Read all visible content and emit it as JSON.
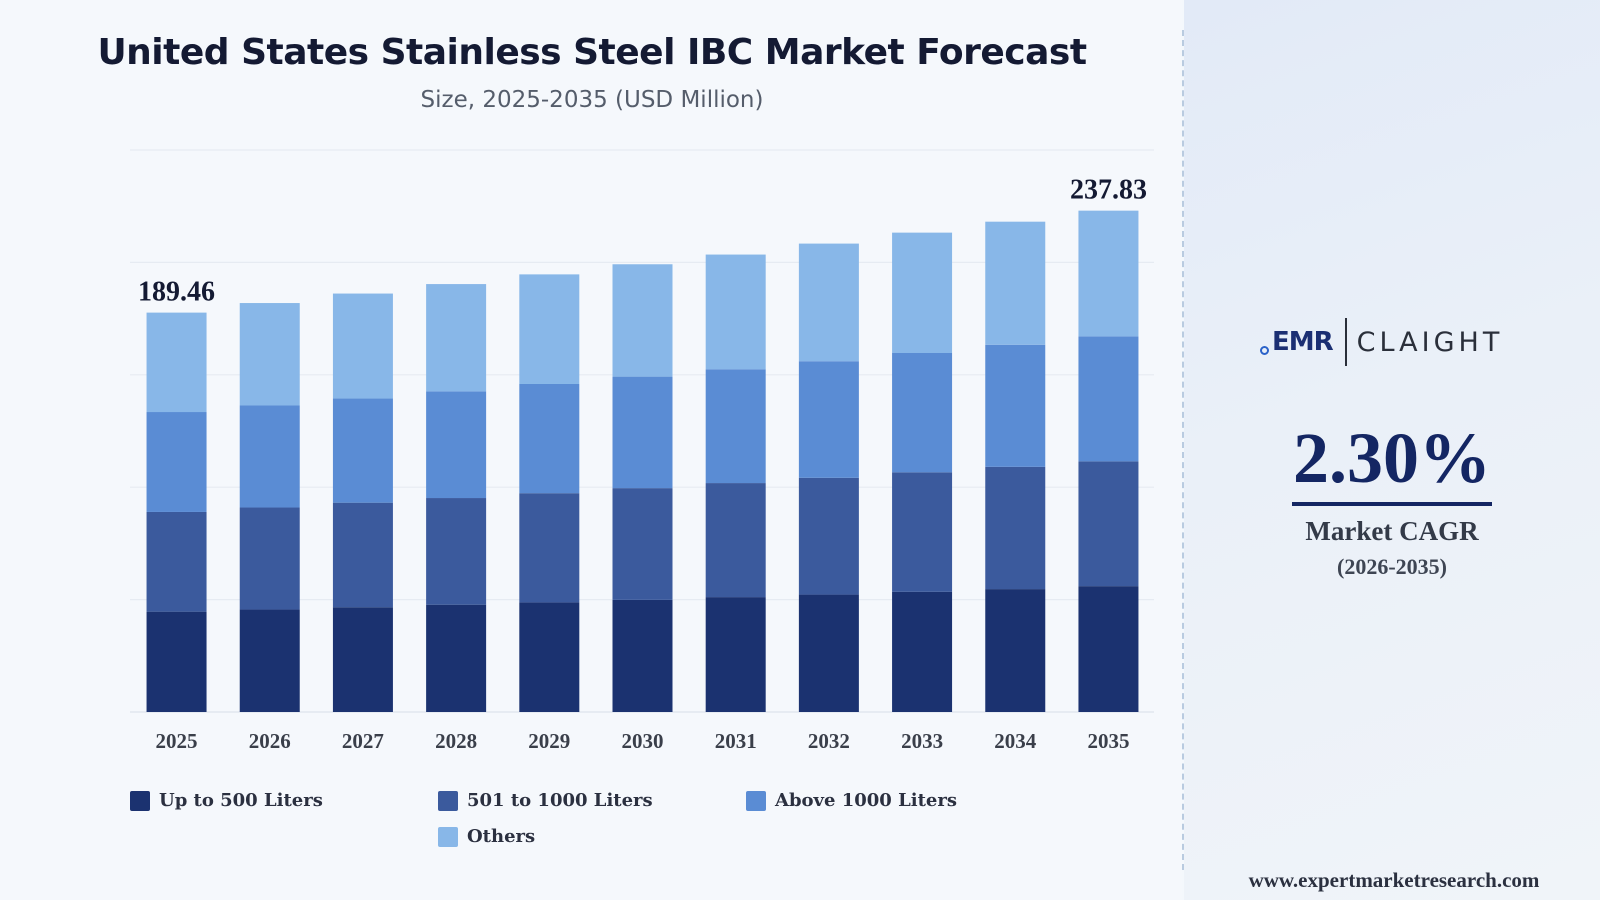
{
  "header": {
    "title": "United States Stainless Steel IBC Market Forecast",
    "subtitle": "Size, 2025-2035 (USD Million)"
  },
  "chart_data": {
    "type": "bar",
    "stacked": true,
    "categories": [
      "2025",
      "2026",
      "2027",
      "2028",
      "2029",
      "2030",
      "2031",
      "2032",
      "2033",
      "2034",
      "2035"
    ],
    "series": [
      {
        "name": "Up to 500 Liters",
        "color": "#1b3270",
        "values": [
          47.6,
          48.6,
          49.7,
          50.9,
          52.0,
          53.2,
          54.5,
          55.7,
          57.0,
          58.3,
          59.7
        ]
      },
      {
        "name": "501 to 1000 Liters",
        "color": "#3b5a9d",
        "values": [
          47.3,
          48.4,
          49.6,
          50.6,
          51.8,
          53.0,
          54.1,
          55.4,
          56.7,
          58.0,
          59.2
        ]
      },
      {
        "name": "Above 1000 Liters",
        "color": "#5a8cd4",
        "values": [
          47.4,
          48.4,
          49.4,
          50.6,
          51.8,
          52.9,
          54.0,
          55.3,
          56.6,
          57.9,
          59.3
        ]
      },
      {
        "name": "Others",
        "color": "#88b7e8",
        "values": [
          47.16,
          48.6,
          49.8,
          50.9,
          52.0,
          53.3,
          54.4,
          55.8,
          57.1,
          58.4,
          59.63
        ]
      }
    ],
    "data_labels": [
      {
        "category": "2025",
        "text": "189.46"
      },
      {
        "category": "2035",
        "text": "237.83"
      }
    ],
    "ylim": [
      0,
      266.6
    ],
    "xlabel": "",
    "ylabel": "",
    "grid": true,
    "legend_position": "bottom-left"
  },
  "sidebar": {
    "logo": {
      "emr": "EMR",
      "claight": "CLAIGHT"
    },
    "cagr_value": "2.30%",
    "cagr_label": "Market CAGR",
    "cagr_period": "(2026-2035)",
    "website": "www.expertmarketresearch.com"
  }
}
